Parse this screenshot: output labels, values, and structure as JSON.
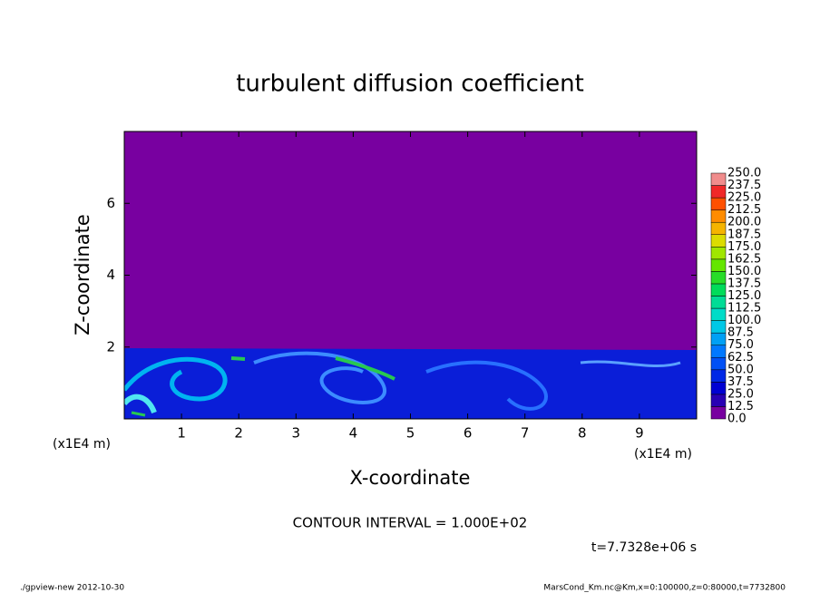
{
  "chart_data": {
    "type": "contour",
    "title": "turbulent diffusion coefficient",
    "xlabel": "X-coordinate",
    "ylabel": "Z-coordinate",
    "x_unit": "(x1E4 m)",
    "y_unit": "(x1E4 m)",
    "xlim": [
      0,
      10
    ],
    "ylim": [
      0,
      8
    ],
    "xticks": [
      1,
      2,
      3,
      4,
      5,
      6,
      7,
      8,
      9
    ],
    "yticks": [
      2,
      4,
      6
    ],
    "colorbar": {
      "levels": [
        {
          "value": 0,
          "label": "0.0"
        },
        {
          "value": 12.5,
          "label": "12.5"
        },
        {
          "value": 25,
          "label": "25.0"
        },
        {
          "value": 37.5,
          "label": "37.5"
        },
        {
          "value": 50,
          "label": "50.0"
        },
        {
          "value": 62.5,
          "label": "62.5"
        },
        {
          "value": 75,
          "label": "75.0"
        },
        {
          "value": 87.5,
          "label": "87.5"
        },
        {
          "value": 100,
          "label": "100.0"
        },
        {
          "value": 112.5,
          "label": "112.5"
        },
        {
          "value": 125,
          "label": "125.0"
        },
        {
          "value": 137.5,
          "label": "137.5"
        },
        {
          "value": 150,
          "label": "150.0"
        },
        {
          "value": 162.5,
          "label": "162.5"
        },
        {
          "value": 175,
          "label": "175.0"
        },
        {
          "value": 187.5,
          "label": "187.5"
        },
        {
          "value": 200,
          "label": "200.0"
        },
        {
          "value": 212.5,
          "label": "212.5"
        },
        {
          "value": 225,
          "label": "225.0"
        },
        {
          "value": 237.5,
          "label": "237.5"
        },
        {
          "value": 250,
          "label": "250.0"
        }
      ],
      "colors": [
        "#7800a0",
        "#2800b4",
        "#0000d2",
        "#0028e6",
        "#0050f5",
        "#0078ff",
        "#00a0f5",
        "#00c8e6",
        "#00dcc8",
        "#00dc96",
        "#00dc5a",
        "#28dc28",
        "#64e600",
        "#a0e600",
        "#dcdc00",
        "#f5b400",
        "#ff8c00",
        "#ff5000",
        "#f02828",
        "#f08c8c"
      ]
    },
    "contour_interval": "CONTOUR INTERVAL = 1.000E+02",
    "time_label": "t=7.7328e+06 s",
    "footer_left": "./gpview-new  2012-10-30",
    "footer_right": "MarsCond_Km.nc@Km,x=0:100000,z=0:80000,t=7732800"
  }
}
